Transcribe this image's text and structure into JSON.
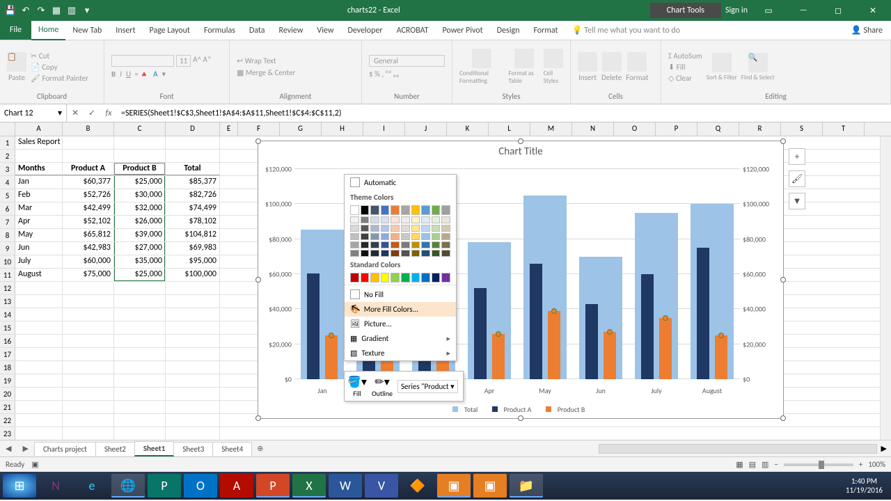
{
  "window": {
    "title": "charts22 - Excel",
    "tools_context": "Chart Tools",
    "signin": "Sign in"
  },
  "ribbon_tabs": [
    "File",
    "Home",
    "New Tab",
    "Insert",
    "Page Layout",
    "Formulas",
    "Data",
    "Review",
    "View",
    "Developer",
    "ACROBAT",
    "Power Pivot",
    "Design",
    "Format"
  ],
  "active_tab": "Home",
  "tellme": "Tell me what you want to do",
  "share": "Share",
  "ribbon_groups": {
    "clipboard": {
      "label": "Clipboard",
      "paste": "Paste",
      "cut": "Cut",
      "copy": "Copy",
      "painter": "Format Painter"
    },
    "font": {
      "label": "Font",
      "size": "11"
    },
    "alignment": {
      "label": "Alignment",
      "wrap": "Wrap Text",
      "merge": "Merge & Center"
    },
    "number": {
      "label": "Number",
      "general": "General"
    },
    "styles": {
      "label": "Styles",
      "cond": "Conditional Formatting",
      "table": "Format as Table",
      "cell": "Cell Styles"
    },
    "cells": {
      "label": "Cells",
      "insert": "Insert",
      "delete": "Delete",
      "format": "Format"
    },
    "editing": {
      "label": "Editing",
      "autosum": "AutoSum",
      "fill": "Fill",
      "clear": "Clear",
      "sort": "Sort & Filter",
      "find": "Find & Select"
    }
  },
  "formula_bar": {
    "name": "Chart 12",
    "formula": "=SERIES(Sheet1!$C$3,Sheet1!$A$4:$A$11,Sheet1!$C$4:$C$11,2)"
  },
  "columns": [
    "A",
    "B",
    "C",
    "D",
    "E",
    "F",
    "G",
    "H",
    "I",
    "J",
    "K",
    "L",
    "M",
    "N",
    "O",
    "P",
    "Q",
    "R",
    "S",
    "T"
  ],
  "table": {
    "title": "Sales Report",
    "headers": [
      "Months",
      "Product A",
      "Product B",
      "Total"
    ],
    "rows": [
      [
        "Jan",
        "$60,377",
        "$25,000",
        "$85,377"
      ],
      [
        "Feb",
        "$52,726",
        "$30,000",
        "$82,726"
      ],
      [
        "Mar",
        "$42,499",
        "$32,000",
        "$74,499"
      ],
      [
        "Apr",
        "$52,102",
        "$26,000",
        "$78,102"
      ],
      [
        "May",
        "$65,812",
        "$39,000",
        "$104,812"
      ],
      [
        "Jun",
        "$42,983",
        "$27,000",
        "$69,983"
      ],
      [
        "July",
        "$60,000",
        "$35,000",
        "$95,000"
      ],
      [
        "August",
        "$75,000",
        "$25,000",
        "$100,000"
      ]
    ]
  },
  "chart": {
    "title": "Chart Title",
    "ymax": 120000,
    "yticks": [
      "$0",
      "$20,000",
      "$40,000",
      "$60,000",
      "$80,000",
      "$100,000",
      "$120,000"
    ],
    "categories": [
      "Jan",
      "Feb",
      "Mar",
      "Apr",
      "May",
      "Jun",
      "July",
      "August"
    ],
    "series": {
      "total": [
        85377,
        82726,
        74499,
        78102,
        104812,
        69983,
        95000,
        100000
      ],
      "productA": [
        60377,
        52726,
        42499,
        52102,
        65812,
        42983,
        60000,
        75000
      ],
      "productB": [
        25000,
        30000,
        32000,
        26000,
        39000,
        27000,
        35000,
        25000
      ]
    },
    "colors": {
      "total": "#9dc3e6",
      "productA": "#1f3864",
      "productB": "#ed7d31",
      "grid": "#d9d9d9"
    },
    "legend": [
      "Total",
      "Product A",
      "Product B"
    ]
  },
  "fill_popup": {
    "automatic": "Automatic",
    "theme_label": "Theme Colors",
    "theme_row": [
      "#ffffff",
      "#000000",
      "#44546a",
      "#4472c4",
      "#ed7d31",
      "#a5a5a5",
      "#ffc000",
      "#5b9bd5",
      "#70ad47",
      "#a0a0a0"
    ],
    "std_label": "Standard Colors",
    "std_row": [
      "#c00000",
      "#ff0000",
      "#ffc000",
      "#ffff00",
      "#92d050",
      "#00b050",
      "#00b0f0",
      "#0070c0",
      "#002060",
      "#7030a0"
    ],
    "no_fill": "No Fill",
    "more": "More Fill Colors...",
    "picture": "Picture...",
    "gradient": "Gradient",
    "texture": "Texture"
  },
  "mini_toolbar": {
    "fill": "Fill",
    "outline": "Outline",
    "series": "Series \"Product"
  },
  "sheet_tabs": [
    "Charts project",
    "Sheet2",
    "Sheet1",
    "Sheet3",
    "Sheet4"
  ],
  "active_sheet": "Sheet1",
  "status": {
    "ready": "Ready",
    "zoom": "100%"
  },
  "clock": {
    "time": "1:40 PM",
    "date": "11/19/2016"
  }
}
